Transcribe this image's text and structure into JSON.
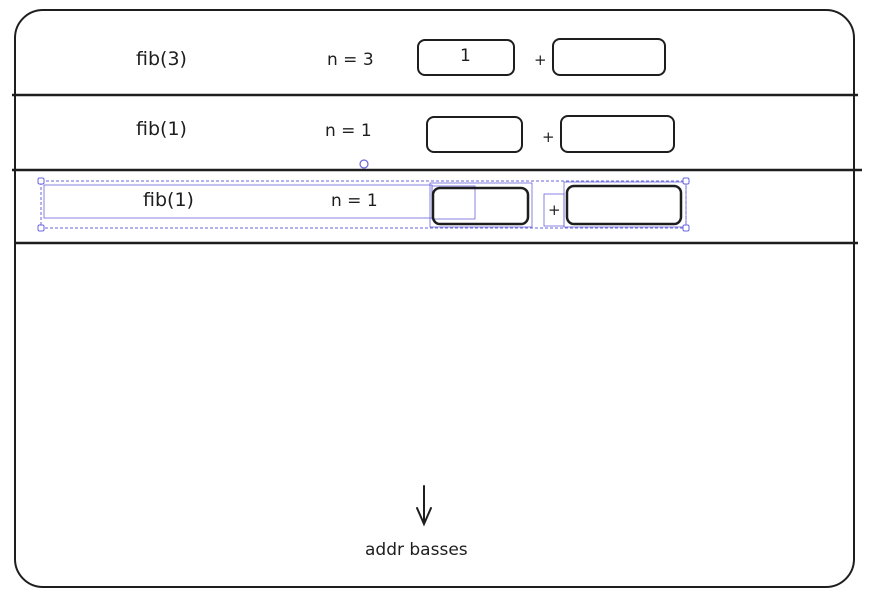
{
  "frames": [
    {
      "func_label": "fib(3)",
      "n_label": "n = 3",
      "left_value": "1",
      "plus": "+",
      "right_value": ""
    },
    {
      "func_label": "fib(1)",
      "n_label": "n = 1",
      "left_value": "",
      "plus": "+",
      "right_value": ""
    },
    {
      "func_label": "fib(1)",
      "n_label": "n = 1",
      "left_value": "",
      "plus": "+",
      "right_value": ""
    }
  ],
  "footer": {
    "caption": "addr basses"
  },
  "colors": {
    "stroke": "#1e1e1e",
    "selection": "#6965db"
  }
}
